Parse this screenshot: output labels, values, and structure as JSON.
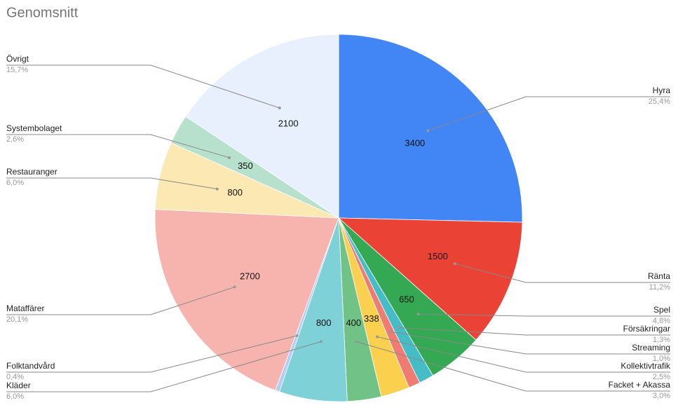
{
  "chart_data": {
    "type": "pie",
    "title": "Genomsnitt",
    "categories": [
      "Hyra",
      "Ränta",
      "Spel",
      "Försäkringar",
      "Streaming",
      "Kollektivtrafik",
      "Facket + Akassa",
      "Kläder",
      "Folktandvård",
      "Mataffärer",
      "Restauranger",
      "Systembolaget",
      "Övrigt"
    ],
    "values": [
      3400,
      1500,
      650,
      175,
      137,
      338,
      400,
      800,
      50,
      2700,
      800,
      350,
      2100
    ],
    "percent_labels": [
      "25,4%",
      "11,2%",
      "4,8%",
      "1,3%",
      "1,0%",
      "2,5%",
      "3,0%",
      "6,0%",
      "0,4%",
      "20,1%",
      "6,0%",
      "2,6%",
      "15,7%"
    ],
    "colors": [
      "#4285f4",
      "#ea4335",
      "#34a853",
      "#46bdc6",
      "#f07b72",
      "#fcd04f",
      "#71c287",
      "#7ed1d7",
      "#b3cefb",
      "#f7b4ae",
      "#fce8b2",
      "#b7e1cd",
      "#e8f0fe"
    ]
  }
}
